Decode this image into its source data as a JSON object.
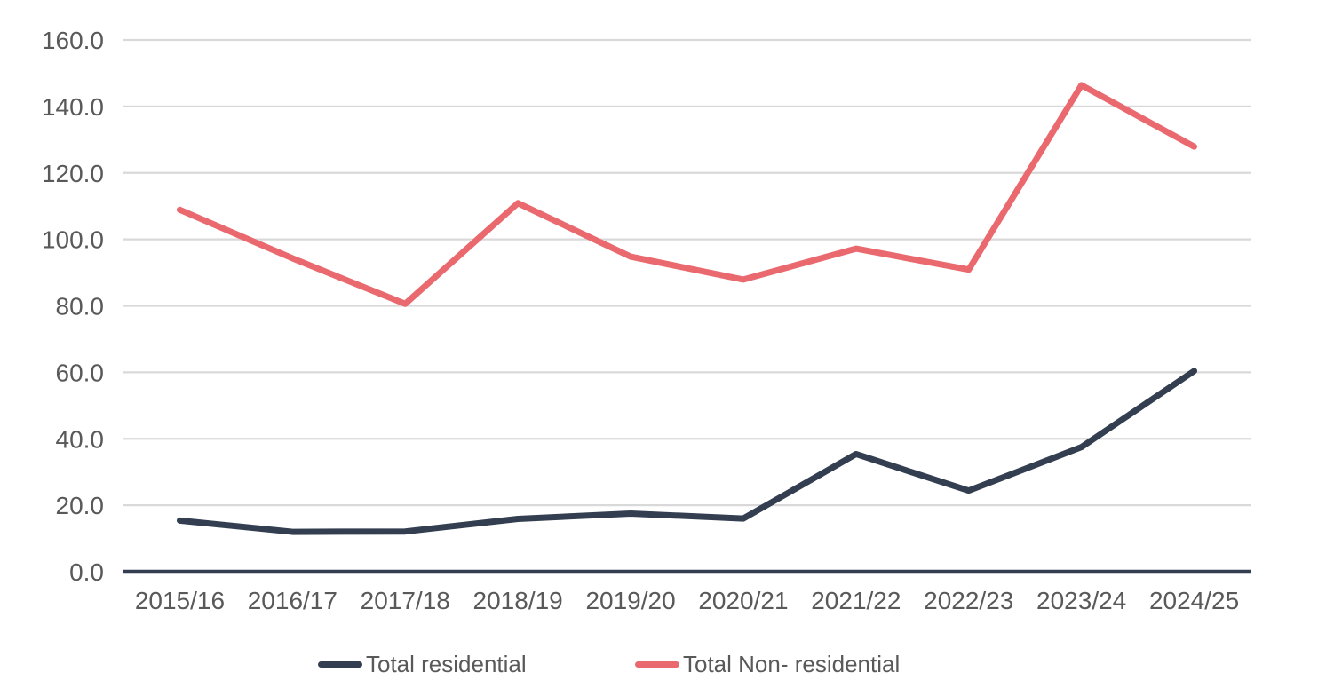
{
  "chart_data": {
    "type": "line",
    "title": "",
    "xlabel": "",
    "ylabel": "",
    "categories": [
      "2015/16",
      "2016/17",
      "2017/18",
      "2018/19",
      "2019/20",
      "2020/21",
      "2021/22",
      "2022/23",
      "2023/24",
      "2024/25"
    ],
    "series": [
      {
        "name": "Total residential",
        "color": "#333F50",
        "values": [
          15.4,
          12.0,
          12.1,
          15.9,
          17.5,
          16.0,
          35.4,
          24.4,
          37.5,
          60.4
        ]
      },
      {
        "name": "Total Non- residential",
        "color": "#E9696F",
        "values": [
          108.9,
          94.3,
          80.6,
          110.9,
          94.8,
          87.9,
          97.2,
          90.9,
          146.4,
          127.9
        ]
      }
    ],
    "ylim": [
      0,
      160
    ],
    "ytick_step": 20,
    "ytick_labels": [
      "0.0",
      "20.0",
      "40.0",
      "60.0",
      "80.0",
      "100.0",
      "120.0",
      "140.0",
      "160.0"
    ],
    "grid": "horizontal",
    "gridline_color": "#D9D9D9",
    "axis_line_color": "#333F50",
    "tick_label_color": "#595959",
    "legend_position": "bottom",
    "background": "#FFFFFF"
  }
}
